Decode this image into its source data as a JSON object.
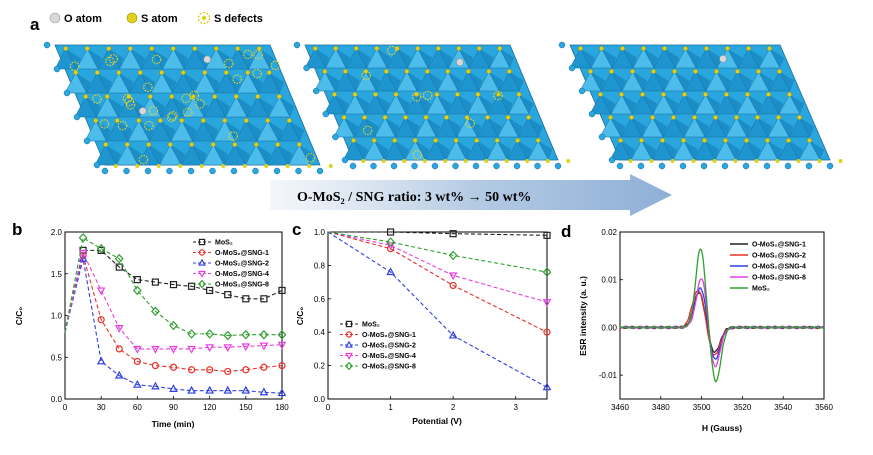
{
  "panel_a": {
    "letter": "a",
    "legend": [
      {
        "label": "O atom",
        "color": "#d8d8d8"
      },
      {
        "label": "S atom",
        "color": "#e0d21a"
      },
      {
        "label": "S defects",
        "color": "#e0d21a"
      }
    ],
    "arrow_text": "O-MoS₂ / SNG ratio: 3 wt% → 50 wt%",
    "lattice_color": "#2aa6df",
    "lattice_dark": "#156c9c",
    "defect_counts": [
      28,
      8,
      0
    ]
  },
  "chart_data": [
    {
      "id": "b",
      "type": "line",
      "letter": "b",
      "xlabel": "Time (min)",
      "ylabel": "C/C₀",
      "xlim": [
        0,
        180
      ],
      "ylim": [
        0,
        2.0
      ],
      "xticks": [
        0,
        30,
        60,
        90,
        120,
        150,
        180
      ],
      "yticks": [
        0.0,
        0.5,
        1.0,
        1.5,
        2.0
      ],
      "x": [
        0,
        15,
        30,
        45,
        60,
        75,
        90,
        105,
        120,
        135,
        150,
        165,
        180
      ],
      "legend_position": "top-right",
      "series": [
        {
          "name": "MoS₂",
          "color": "#222222",
          "marker": "square",
          "values": [
            0.8,
            1.78,
            1.78,
            1.58,
            1.43,
            1.4,
            1.37,
            1.35,
            1.3,
            1.25,
            1.2,
            1.2,
            1.3
          ]
        },
        {
          "name": "O-MoS₂@SNG-1",
          "color": "#e8302a",
          "marker": "circle",
          "values": [
            0.8,
            1.72,
            0.95,
            0.6,
            0.45,
            0.4,
            0.38,
            0.35,
            0.35,
            0.33,
            0.35,
            0.38,
            0.4
          ]
        },
        {
          "name": "O-MoS₂@SNG-2",
          "color": "#2e3fe0",
          "marker": "triangle",
          "values": [
            0.8,
            1.68,
            0.45,
            0.28,
            0.17,
            0.15,
            0.12,
            0.1,
            0.1,
            0.1,
            0.1,
            0.08,
            0.07
          ]
        },
        {
          "name": "O-MoS₂@SNG-4",
          "color": "#e83ee0",
          "marker": "triangle-down",
          "values": [
            0.8,
            1.75,
            1.3,
            0.85,
            0.6,
            0.6,
            0.6,
            0.6,
            0.62,
            0.62,
            0.63,
            0.64,
            0.65
          ]
        },
        {
          "name": "O-MoS₂@SNG-8",
          "color": "#2fa02f",
          "marker": "diamond",
          "values": [
            0.8,
            1.93,
            1.8,
            1.68,
            1.3,
            1.05,
            0.88,
            0.78,
            0.78,
            0.76,
            0.77,
            0.77,
            0.77
          ]
        }
      ]
    },
    {
      "id": "c",
      "type": "line",
      "letter": "c",
      "xlabel": "Potential (V)",
      "ylabel": "C/C₀",
      "xlim": [
        0,
        3.5
      ],
      "ylim": [
        0,
        1.0
      ],
      "xticks": [
        0,
        1,
        2,
        3
      ],
      "yticks": [
        0.0,
        0.2,
        0.4,
        0.6,
        0.8,
        1.0
      ],
      "x": [
        0,
        1,
        2,
        3.5
      ],
      "legend_position": "bottom-left",
      "series": [
        {
          "name": "MoS₂",
          "color": "#222222",
          "marker": "square",
          "values": [
            1.0,
            1.0,
            0.99,
            0.98
          ]
        },
        {
          "name": "O-MoS₂@SNG-1",
          "color": "#e8302a",
          "marker": "circle",
          "values": [
            1.0,
            0.9,
            0.68,
            0.4
          ]
        },
        {
          "name": "O-MoS₂@SNG-2",
          "color": "#2e3fe0",
          "marker": "triangle",
          "values": [
            1.0,
            0.76,
            0.38,
            0.07
          ]
        },
        {
          "name": "O-MoS₂@SNG-4",
          "color": "#e83ee0",
          "marker": "triangle-down",
          "values": [
            1.0,
            0.92,
            0.74,
            0.58
          ]
        },
        {
          "name": "O-MoS₂@SNG-8",
          "color": "#2fa02f",
          "marker": "diamond",
          "values": [
            1.0,
            0.94,
            0.86,
            0.76
          ]
        }
      ]
    },
    {
      "id": "d",
      "type": "line",
      "letter": "d",
      "xlabel": "H (Gauss)",
      "ylabel": "ESR intensity (a. u.)",
      "xlim": [
        3460,
        3560
      ],
      "ylim": [
        -0.015,
        0.02
      ],
      "xticks": [
        3460,
        3480,
        3500,
        3520,
        3540,
        3560
      ],
      "yticks": [
        -0.01,
        0.0,
        0.01,
        0.02
      ],
      "ytick_labels": [
        "-0.01",
        "0.00",
        "0.01",
        "0.02"
      ],
      "legend_position": "top-right",
      "series": [
        {
          "name": "O-MoS₂@SNG-1",
          "color": "#222222",
          "peak_x": 3499,
          "peak": 0.0075,
          "trough_x": 3506,
          "trough": -0.0055,
          "width": 4.0
        },
        {
          "name": "O-MoS₂@SNG-2",
          "color": "#e8302a",
          "peak_x": 3498.5,
          "peak": 0.008,
          "trough_x": 3506,
          "trough": -0.006,
          "width": 4.2
        },
        {
          "name": "O-MoS₂@SNG-4",
          "color": "#2e3fe0",
          "peak_x": 3499.5,
          "peak": 0.0085,
          "trough_x": 3506.5,
          "trough": -0.0068,
          "width": 3.8
        },
        {
          "name": "O-MoS₂@SNG-8",
          "color": "#e83ee0",
          "peak_x": 3500,
          "peak": 0.0105,
          "trough_x": 3506.5,
          "trough": -0.0085,
          "width": 3.6
        },
        {
          "name": "MoS₂",
          "color": "#2fa02f",
          "peak_x": 3499.5,
          "peak": 0.0165,
          "trough_x": 3507,
          "trough": -0.0115,
          "width": 3.4
        }
      ]
    }
  ]
}
